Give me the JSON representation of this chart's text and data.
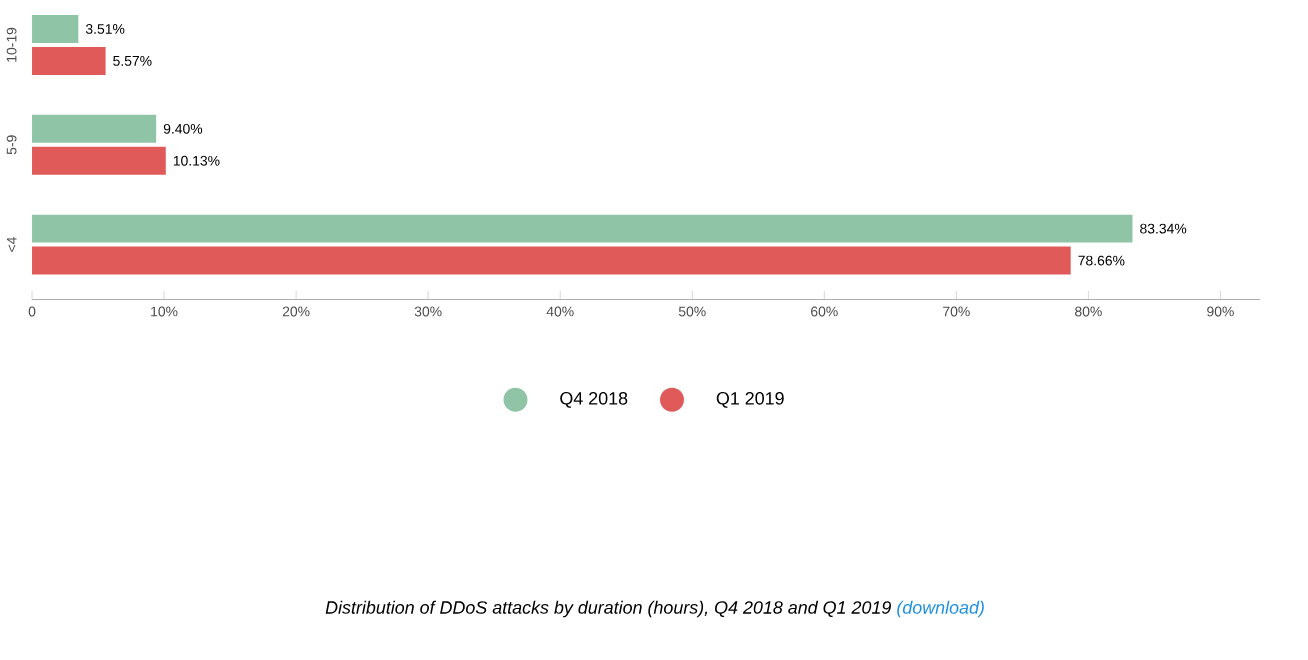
{
  "chart_data": {
    "type": "bar",
    "orientation": "horizontal",
    "categories": [
      "10-19",
      "5-9",
      "<4"
    ],
    "series": [
      {
        "name": "Q4 2018",
        "color": "#8fc4a6",
        "values": [
          3.51,
          9.4,
          83.34
        ],
        "value_labels": [
          "3.51%",
          "9.40%",
          "83.34%"
        ]
      },
      {
        "name": "Q1 2019",
        "color": "#e05a5a",
        "values": [
          5.57,
          10.13,
          78.66
        ],
        "value_labels": [
          "5.57%",
          "10.13%",
          "78.66%"
        ]
      }
    ],
    "xlim": [
      0,
      93
    ],
    "xticks": [
      0,
      {
        "value": 10,
        "label": "10%"
      },
      {
        "value": 20,
        "label": "20%"
      },
      {
        "value": 30,
        "label": "30%"
      },
      {
        "value": 40,
        "label": "40%"
      },
      {
        "value": 50,
        "label": "50%"
      },
      {
        "value": 60,
        "label": "60%"
      },
      {
        "value": 70,
        "label": "70%"
      },
      {
        "value": 80,
        "label": "80%"
      },
      {
        "value": 90,
        "label": "90%"
      }
    ],
    "legend": "bottom",
    "marker": "circle",
    "annotations": [
      "Distribution of DDoS attacks by duration (hours), Q4 2018 and Q1 2019",
      "(download)"
    ]
  }
}
